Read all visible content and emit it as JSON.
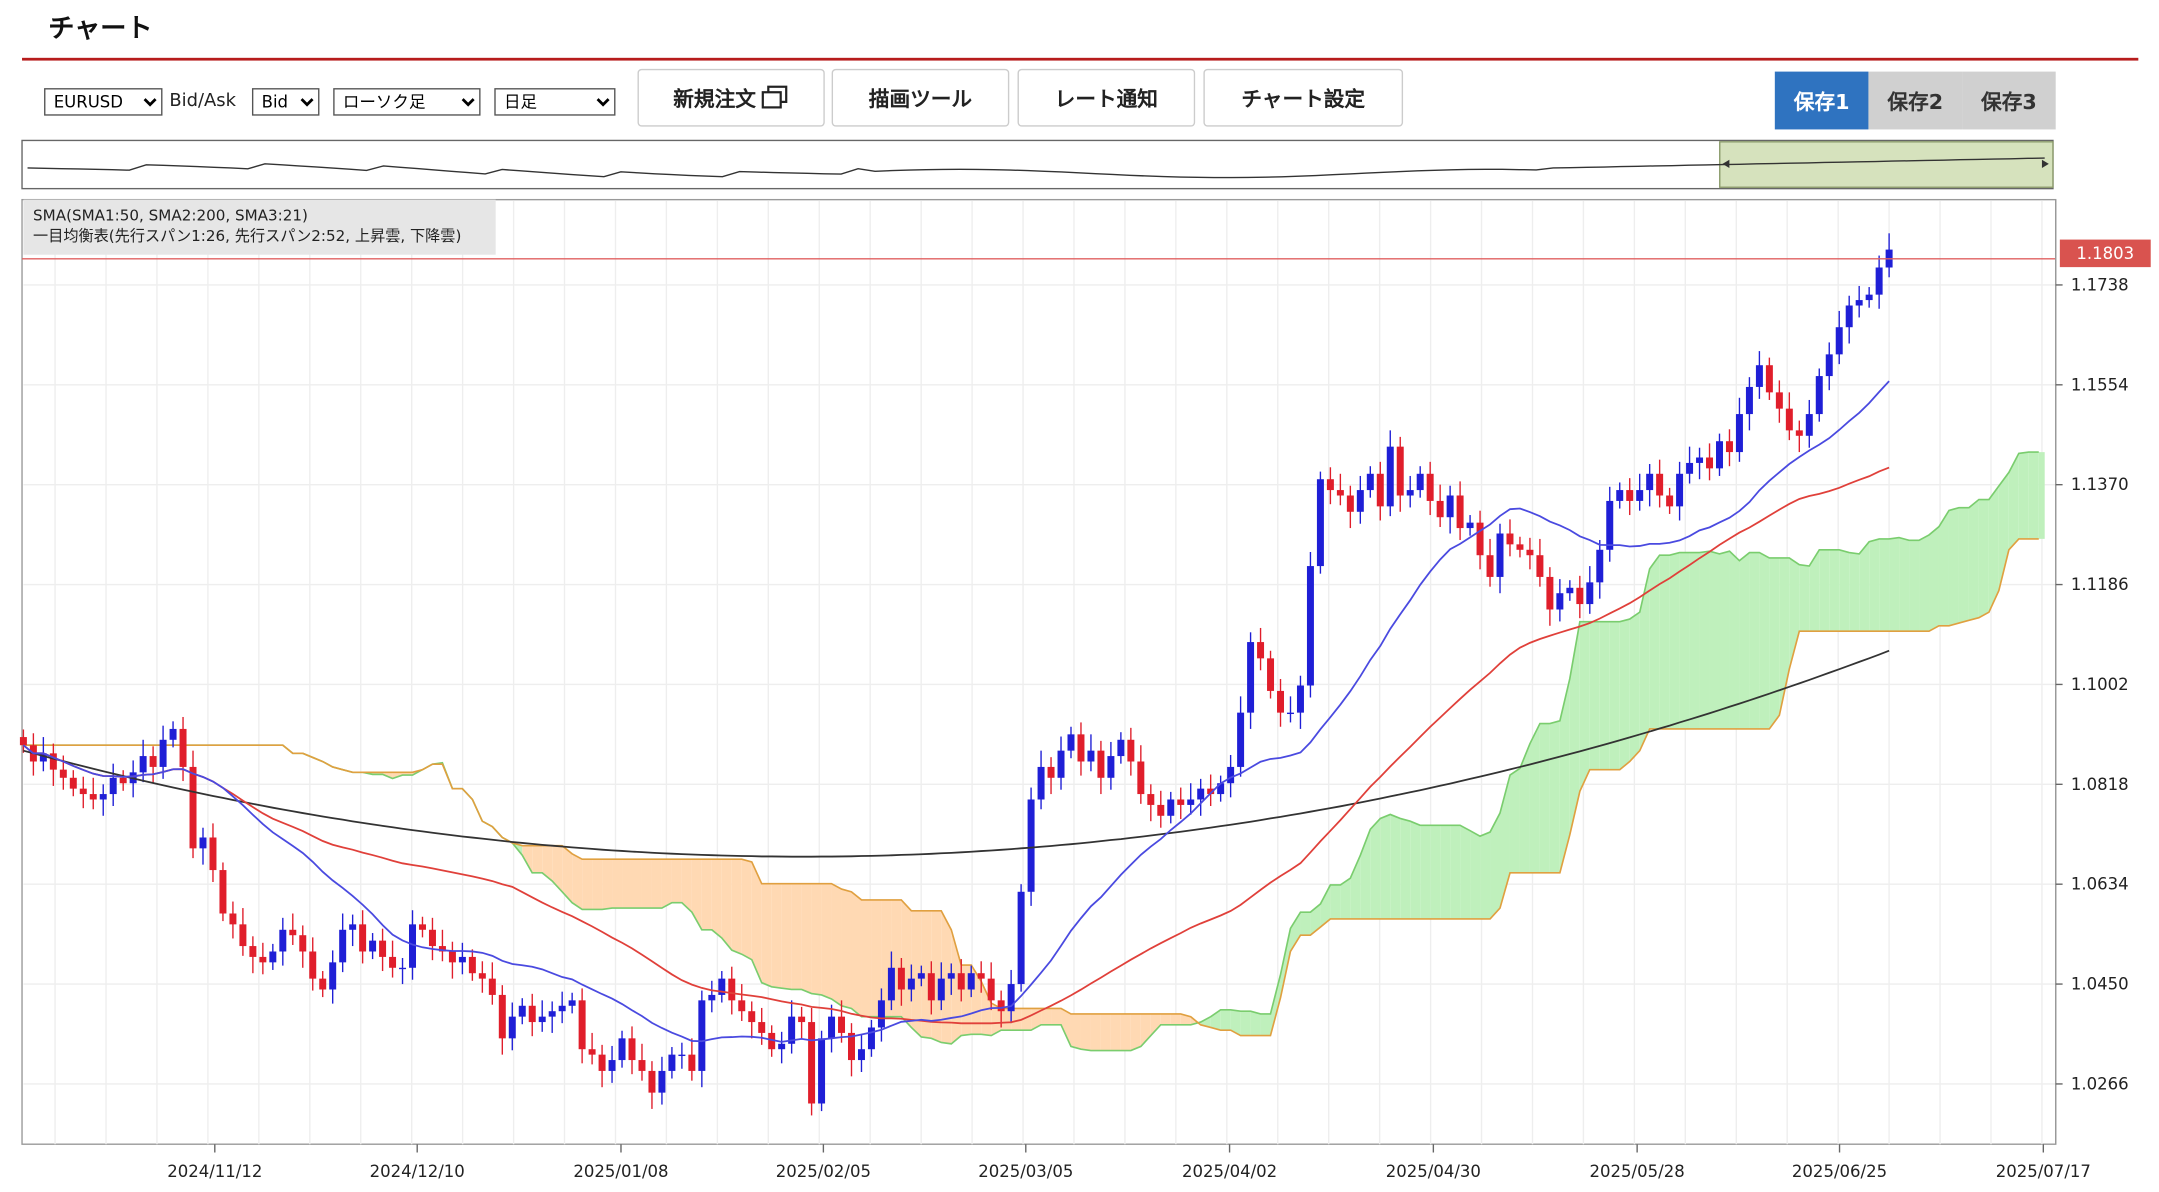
{
  "header": {
    "title": "チャート"
  },
  "toolbar": {
    "symbol": "EURUSD",
    "bidask_label": "Bid/Ask",
    "bidask_value": "Bid",
    "chart_type": "ローソク足",
    "period": "日足",
    "new_order": "新規注文",
    "drawing_tools": "描画ツール",
    "rate_alert": "レート通知",
    "chart_settings": "チャート設定",
    "save_slots": [
      "保存1",
      "保存2",
      "保存3"
    ]
  },
  "legend": {
    "line1": "SMA(SMA1:50, SMA2:200, SMA3:21)",
    "line2": "一目均衡表(先行スパン1:26, 先行スパン2:52, 上昇雲, 下降雲)"
  },
  "current_price": "1.1803",
  "colors": {
    "up": "#1f1fd6",
    "down": "#e01e2b",
    "sma21": "#4a4ae0",
    "sma50": "#e0403a",
    "sma200": "#333333",
    "cloud_up": "#bff0bc",
    "cloud_down": "#ffd9b3",
    "span1": "#7acd6e",
    "span2": "#e0a040",
    "accent": "#b71c1c",
    "save_active": "#2f73c0"
  },
  "chart_data": {
    "type": "candlestick",
    "symbol": "EURUSD",
    "timeframe": "日足",
    "ylim": [
      1.0155,
      1.1895
    ],
    "yticks": [
      "1.1738",
      "1.1554",
      "1.1370",
      "1.1186",
      "1.1002",
      "1.0818",
      "1.0634",
      "1.0450",
      "1.0266"
    ],
    "xticks": [
      "2024/11/12",
      "2024/12/10",
      "2025/01/08",
      "2025/02/05",
      "2025/03/05",
      "2025/04/02",
      "2025/04/30",
      "2025/05/28",
      "2025/06/25",
      "2025/07/17"
    ],
    "close": [
      1.089,
      1.086,
      1.0875,
      1.0845,
      1.083,
      1.081,
      1.08,
      1.079,
      1.08,
      1.083,
      1.082,
      1.084,
      1.087,
      1.085,
      1.09,
      1.092,
      1.085,
      1.07,
      1.072,
      1.066,
      1.058,
      1.056,
      1.052,
      1.05,
      1.049,
      1.051,
      1.055,
      1.054,
      1.051,
      1.046,
      1.044,
      1.049,
      1.055,
      1.056,
      1.051,
      1.053,
      1.05,
      1.048,
      1.048,
      1.056,
      1.055,
      1.052,
      1.051,
      1.049,
      1.05,
      1.047,
      1.046,
      1.043,
      1.035,
      1.039,
      1.041,
      1.038,
      1.039,
      1.04,
      1.041,
      1.042,
      1.033,
      1.032,
      1.029,
      1.031,
      1.035,
      1.031,
      1.029,
      1.025,
      1.029,
      1.032,
      1.032,
      1.029,
      1.042,
      1.043,
      1.046,
      1.042,
      1.04,
      1.038,
      1.036,
      1.033,
      1.034,
      1.039,
      1.038,
      1.023,
      1.035,
      1.039,
      1.036,
      1.031,
      1.033,
      1.037,
      1.042,
      1.048,
      1.044,
      1.046,
      1.047,
      1.042,
      1.046,
      1.047,
      1.044,
      1.047,
      1.046,
      1.042,
      1.04,
      1.045,
      1.062,
      1.079,
      1.085,
      1.083,
      1.088,
      1.091,
      1.086,
      1.088,
      1.083,
      1.087,
      1.09,
      1.086,
      1.08,
      1.078,
      1.076,
      1.079,
      1.078,
      1.079,
      1.081,
      1.08,
      1.082,
      1.085,
      1.095,
      1.108,
      1.105,
      1.099,
      1.095,
      1.095,
      1.1,
      1.122,
      1.138,
      1.136,
      1.135,
      1.132,
      1.136,
      1.139,
      1.133,
      1.144,
      1.135,
      1.136,
      1.139,
      1.134,
      1.131,
      1.135,
      1.129,
      1.13,
      1.124,
      1.12,
      1.128,
      1.126,
      1.125,
      1.124,
      1.12,
      1.114,
      1.117,
      1.118,
      1.115,
      1.119,
      1.125,
      1.134,
      1.136,
      1.134,
      1.136,
      1.139,
      1.135,
      1.133,
      1.139,
      1.141,
      1.142,
      1.14,
      1.145,
      1.143,
      1.15,
      1.155,
      1.159,
      1.154,
      1.151,
      1.147,
      1.146,
      1.15,
      1.157,
      1.161,
      1.166,
      1.17,
      1.171,
      1.172,
      1.177,
      1.1803
    ]
  }
}
